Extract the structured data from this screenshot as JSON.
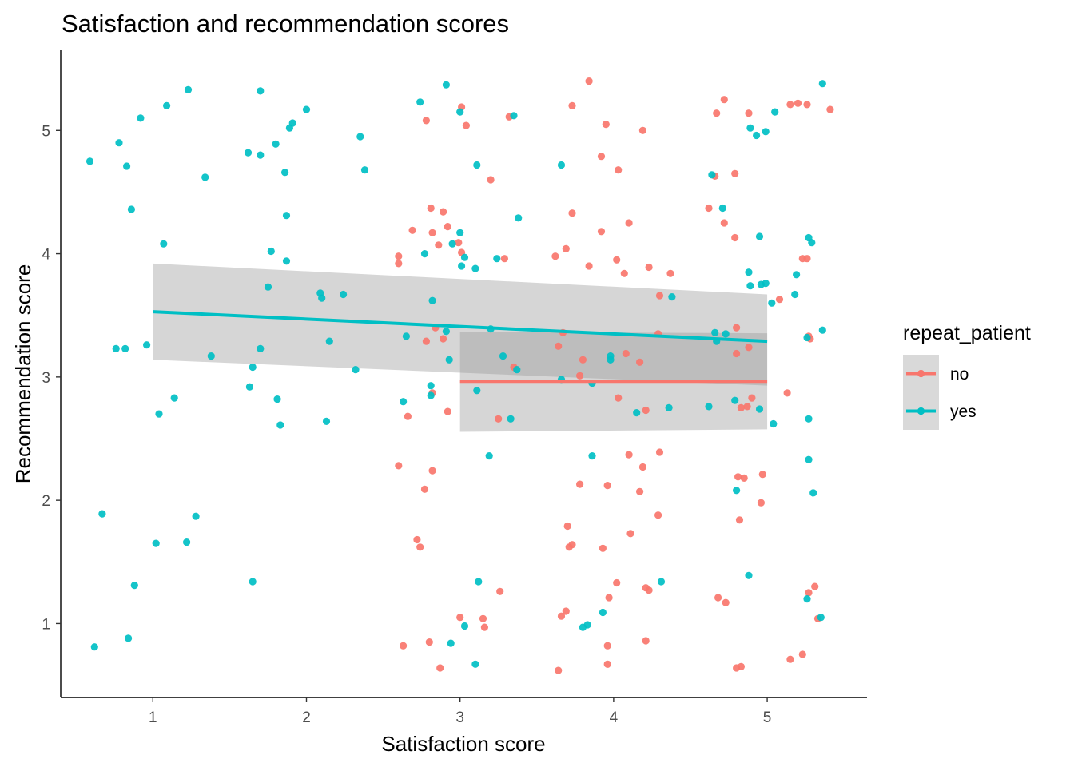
{
  "chart_data": {
    "type": "scatter",
    "title": "Satisfaction and recommendation scores",
    "xlabel": "Satisfaction score",
    "ylabel": "Recommendation score",
    "xlim": [
      0.4,
      5.65
    ],
    "ylim": [
      0.4,
      5.65
    ],
    "x_ticks": [
      1,
      2,
      3,
      4,
      5
    ],
    "y_ticks": [
      1,
      2,
      3,
      4,
      5
    ],
    "grid": false,
    "legend": {
      "title": "repeat_patient",
      "position": "right"
    },
    "series": [
      {
        "name": "no",
        "color": "#F8766D",
        "points": [
          [
            3.84,
            5.4
          ],
          [
            3.01,
            5.19
          ],
          [
            3.73,
            5.2
          ],
          [
            3.32,
            5.11
          ],
          [
            3.04,
            5.04
          ],
          [
            2.78,
            5.08
          ],
          [
            3.95,
            5.05
          ],
          [
            4.19,
            5.0
          ],
          [
            3.2,
            4.6
          ],
          [
            3.92,
            4.79
          ],
          [
            4.03,
            4.68
          ],
          [
            4.72,
            5.25
          ],
          [
            4.67,
            5.14
          ],
          [
            4.88,
            5.14
          ],
          [
            5.15,
            5.21
          ],
          [
            5.2,
            5.22
          ],
          [
            5.26,
            5.21
          ],
          [
            5.41,
            5.17
          ],
          [
            4.66,
            4.63
          ],
          [
            4.79,
            4.65
          ],
          [
            4.62,
            4.37
          ],
          [
            4.72,
            4.25
          ],
          [
            4.79,
            4.13
          ],
          [
            2.81,
            4.37
          ],
          [
            2.89,
            4.34
          ],
          [
            2.92,
            4.22
          ],
          [
            2.69,
            4.19
          ],
          [
            2.82,
            4.17
          ],
          [
            2.99,
            4.09
          ],
          [
            2.86,
            4.07
          ],
          [
            3.73,
            4.33
          ],
          [
            3.92,
            4.18
          ],
          [
            4.1,
            4.25
          ],
          [
            2.6,
            3.98
          ],
          [
            2.6,
            3.92
          ],
          [
            3.01,
            4.01
          ],
          [
            3.29,
            3.96
          ],
          [
            3.62,
            3.98
          ],
          [
            3.69,
            4.04
          ],
          [
            3.84,
            3.9
          ],
          [
            4.02,
            3.95
          ],
          [
            4.07,
            3.84
          ],
          [
            4.23,
            3.89
          ],
          [
            4.37,
            3.84
          ],
          [
            4.3,
            3.66
          ],
          [
            5.08,
            3.63
          ],
          [
            5.23,
            3.96
          ],
          [
            5.26,
            3.96
          ],
          [
            3.64,
            3.25
          ],
          [
            3.67,
            3.36
          ],
          [
            2.78,
            3.29
          ],
          [
            2.84,
            3.4
          ],
          [
            2.89,
            3.31
          ],
          [
            3.35,
            3.08
          ],
          [
            3.8,
            3.14
          ],
          [
            4.08,
            3.19
          ],
          [
            4.17,
            3.12
          ],
          [
            4.29,
            3.35
          ],
          [
            4.8,
            3.4
          ],
          [
            4.8,
            3.19
          ],
          [
            4.88,
            3.24
          ],
          [
            5.27,
            3.33
          ],
          [
            5.28,
            3.31
          ],
          [
            2.66,
            2.68
          ],
          [
            2.82,
            2.87
          ],
          [
            2.92,
            2.72
          ],
          [
            3.25,
            2.66
          ],
          [
            3.78,
            3.01
          ],
          [
            4.03,
            2.83
          ],
          [
            4.21,
            2.73
          ],
          [
            4.83,
            2.75
          ],
          [
            4.87,
            2.76
          ],
          [
            4.9,
            2.83
          ],
          [
            5.13,
            2.87
          ],
          [
            2.6,
            2.28
          ],
          [
            2.82,
            2.24
          ],
          [
            2.77,
            2.09
          ],
          [
            3.78,
            2.13
          ],
          [
            3.96,
            2.12
          ],
          [
            4.1,
            2.37
          ],
          [
            4.17,
            2.07
          ],
          [
            4.19,
            2.27
          ],
          [
            4.3,
            2.39
          ],
          [
            4.81,
            2.19
          ],
          [
            4.85,
            2.18
          ],
          [
            4.97,
            2.21
          ],
          [
            4.96,
            1.98
          ],
          [
            4.82,
            1.84
          ],
          [
            2.72,
            1.68
          ],
          [
            2.74,
            1.62
          ],
          [
            3.7,
            1.79
          ],
          [
            3.71,
            1.62
          ],
          [
            3.73,
            1.64
          ],
          [
            3.93,
            1.61
          ],
          [
            4.11,
            1.73
          ],
          [
            4.29,
            1.88
          ],
          [
            3.26,
            1.26
          ],
          [
            3.66,
            1.06
          ],
          [
            3.69,
            1.1
          ],
          [
            3.97,
            1.21
          ],
          [
            4.02,
            1.33
          ],
          [
            4.21,
            1.29
          ],
          [
            4.23,
            1.27
          ],
          [
            4.68,
            1.21
          ],
          [
            4.73,
            1.17
          ],
          [
            5.27,
            1.25
          ],
          [
            5.31,
            1.3
          ],
          [
            5.33,
            1.04
          ],
          [
            2.63,
            0.82
          ],
          [
            2.8,
            0.85
          ],
          [
            2.87,
            0.64
          ],
          [
            3.0,
            1.05
          ],
          [
            3.15,
            1.04
          ],
          [
            3.16,
            0.97
          ],
          [
            3.64,
            0.62
          ],
          [
            3.96,
            0.82
          ],
          [
            3.96,
            0.67
          ],
          [
            4.21,
            0.86
          ],
          [
            4.8,
            0.64
          ],
          [
            4.83,
            0.65
          ],
          [
            5.15,
            0.71
          ],
          [
            5.23,
            0.75
          ]
        ]
      },
      {
        "name": "yes",
        "color": "#00BFC4",
        "points": [
          [
            1.23,
            5.33
          ],
          [
            1.7,
            5.32
          ],
          [
            1.09,
            5.2
          ],
          [
            0.92,
            5.1
          ],
          [
            2.0,
            5.17
          ],
          [
            1.91,
            5.06
          ],
          [
            1.89,
            5.02
          ],
          [
            0.78,
            4.9
          ],
          [
            1.62,
            4.82
          ],
          [
            1.8,
            4.89
          ],
          [
            1.7,
            4.8
          ],
          [
            0.83,
            4.71
          ],
          [
            0.59,
            4.75
          ],
          [
            1.34,
            4.62
          ],
          [
            1.86,
            4.66
          ],
          [
            2.35,
            4.95
          ],
          [
            2.38,
            4.68
          ],
          [
            2.91,
            5.37
          ],
          [
            2.74,
            5.23
          ],
          [
            3.0,
            5.15
          ],
          [
            3.35,
            5.12
          ],
          [
            5.36,
            5.38
          ],
          [
            4.89,
            5.02
          ],
          [
            4.93,
            4.96
          ],
          [
            4.99,
            4.99
          ],
          [
            5.05,
            5.15
          ],
          [
            0.86,
            4.36
          ],
          [
            1.87,
            4.31
          ],
          [
            1.07,
            4.08
          ],
          [
            1.77,
            4.02
          ],
          [
            1.87,
            3.94
          ],
          [
            3.11,
            4.72
          ],
          [
            3.66,
            4.72
          ],
          [
            4.64,
            4.64
          ],
          [
            4.71,
            4.37
          ],
          [
            3.38,
            4.29
          ],
          [
            3.0,
            4.17
          ],
          [
            2.95,
            4.08
          ],
          [
            2.77,
            4.0
          ],
          [
            3.03,
            3.97
          ],
          [
            3.01,
            3.9
          ],
          [
            3.1,
            3.88
          ],
          [
            3.24,
            3.96
          ],
          [
            4.95,
            4.14
          ],
          [
            5.27,
            4.13
          ],
          [
            5.29,
            4.09
          ],
          [
            1.75,
            3.73
          ],
          [
            2.09,
            3.68
          ],
          [
            2.1,
            3.64
          ],
          [
            2.24,
            3.67
          ],
          [
            2.82,
            3.62
          ],
          [
            4.38,
            3.65
          ],
          [
            4.88,
            3.85
          ],
          [
            4.89,
            3.74
          ],
          [
            4.96,
            3.75
          ],
          [
            4.99,
            3.76
          ],
          [
            5.03,
            3.6
          ],
          [
            5.18,
            3.67
          ],
          [
            5.19,
            3.83
          ],
          [
            0.76,
            3.23
          ],
          [
            0.82,
            3.23
          ],
          [
            0.96,
            3.26
          ],
          [
            1.38,
            3.17
          ],
          [
            1.7,
            3.23
          ],
          [
            2.15,
            3.29
          ],
          [
            2.65,
            3.33
          ],
          [
            2.91,
            3.37
          ],
          [
            3.2,
            3.39
          ],
          [
            3.28,
            3.17
          ],
          [
            3.37,
            3.06
          ],
          [
            3.66,
            2.98
          ],
          [
            3.98,
            3.17
          ],
          [
            3.98,
            3.14
          ],
          [
            4.66,
            3.36
          ],
          [
            4.67,
            3.29
          ],
          [
            4.73,
            3.35
          ],
          [
            5.26,
            3.32
          ],
          [
            5.36,
            3.38
          ],
          [
            1.04,
            2.7
          ],
          [
            1.14,
            2.83
          ],
          [
            1.63,
            2.92
          ],
          [
            1.65,
            3.08
          ],
          [
            1.81,
            2.82
          ],
          [
            1.83,
            2.61
          ],
          [
            2.13,
            2.64
          ],
          [
            2.32,
            3.06
          ],
          [
            2.63,
            2.8
          ],
          [
            2.81,
            2.85
          ],
          [
            2.81,
            2.93
          ],
          [
            2.93,
            3.14
          ],
          [
            3.11,
            2.89
          ],
          [
            3.33,
            2.66
          ],
          [
            3.86,
            2.95
          ],
          [
            4.15,
            2.71
          ],
          [
            4.36,
            2.75
          ],
          [
            4.62,
            2.76
          ],
          [
            4.79,
            2.81
          ],
          [
            4.95,
            2.74
          ],
          [
            5.04,
            2.62
          ],
          [
            5.27,
            2.66
          ],
          [
            3.19,
            2.36
          ],
          [
            3.86,
            2.36
          ],
          [
            5.27,
            2.33
          ],
          [
            4.8,
            2.08
          ],
          [
            5.3,
            2.06
          ],
          [
            0.67,
            1.89
          ],
          [
            1.02,
            1.65
          ],
          [
            1.22,
            1.66
          ],
          [
            1.28,
            1.87
          ],
          [
            0.88,
            1.31
          ],
          [
            1.65,
            1.34
          ],
          [
            0.62,
            0.81
          ],
          [
            0.84,
            0.88
          ],
          [
            2.94,
            0.84
          ],
          [
            3.03,
            0.98
          ],
          [
            3.1,
            0.67
          ],
          [
            3.12,
            1.34
          ],
          [
            3.8,
            0.97
          ],
          [
            3.83,
            0.99
          ],
          [
            3.93,
            1.09
          ],
          [
            4.31,
            1.34
          ],
          [
            4.88,
            1.39
          ],
          [
            5.26,
            1.2
          ],
          [
            5.35,
            1.05
          ]
        ]
      }
    ],
    "trend_lines": [
      {
        "series": "no",
        "x": [
          3.0,
          5.0
        ],
        "y": [
          2.965,
          2.965
        ],
        "ci_lower": [
          2.555,
          2.575
        ],
        "ci_upper": [
          3.365,
          3.355
        ]
      },
      {
        "series": "yes",
        "x": [
          1.0,
          5.0
        ],
        "y": [
          3.53,
          3.29
        ],
        "ci_lower": [
          3.14,
          2.93
        ],
        "ci_upper": [
          3.92,
          3.67
        ]
      }
    ]
  }
}
